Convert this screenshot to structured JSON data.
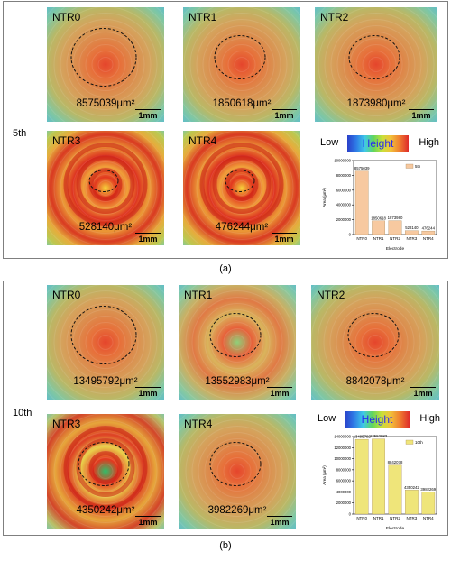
{
  "figure": {
    "panels": [
      {
        "id": "a",
        "caption": "(a)",
        "row_label": "5th",
        "scale_label": "1mm",
        "legend": {
          "low": "Low",
          "height": "Height",
          "high": "High"
        },
        "tiles": [
          {
            "label": "NTR0",
            "area": "8575039μm²",
            "style": "warm"
          },
          {
            "label": "NTR1",
            "area": "1850618μm²",
            "style": "warm"
          },
          {
            "label": "NTR2",
            "area": "1873980μm²",
            "style": "warm"
          },
          {
            "label": "NTR3",
            "area": "528140μm²",
            "style": "rings"
          },
          {
            "label": "NTR4",
            "area": "476244μm²",
            "style": "rings"
          }
        ]
      },
      {
        "id": "b",
        "caption": "(b)",
        "row_label": "10th",
        "scale_label": "1mm",
        "legend": {
          "low": "Low",
          "height": "Height",
          "high": "High"
        },
        "tiles": [
          {
            "label": "NTR0",
            "area": "13495792μm²",
            "style": "warm"
          },
          {
            "label": "NTR1",
            "area": "13552983μm²",
            "style": "greenish"
          },
          {
            "label": "NTR2",
            "area": "8842078μm²",
            "style": "warm"
          },
          {
            "label": "NTR3",
            "area": "4350242μm²",
            "style": "greenrings"
          },
          {
            "label": "NTR4",
            "area": "3982269μm²",
            "style": "warm"
          }
        ]
      }
    ]
  },
  "chart_data": [
    {
      "type": "bar",
      "categories": [
        "NTR0",
        "NTR1",
        "NTR2",
        "NTR3",
        "NTR4"
      ],
      "series": [
        {
          "name": "5th",
          "values": [
            8575039,
            1850618,
            1873980,
            528140,
            476244
          ],
          "color": "#f7c9a0"
        }
      ],
      "value_labels": [
        "8575039",
        "1850618",
        "1873980",
        "528140",
        "476244"
      ],
      "xlabel": "Electrode",
      "ylabel": "Area (μm²)",
      "ylim": [
        0,
        10000000
      ],
      "yticks": [
        "0",
        "2000000",
        "4000000",
        "6000000",
        "8000000",
        "10000000"
      ],
      "legend": "top-right",
      "grid": false
    },
    {
      "type": "bar",
      "categories": [
        "NTR0",
        "NTR1",
        "NTR2",
        "NTR3",
        "NTR4"
      ],
      "series": [
        {
          "name": "10th",
          "values": [
            13495792,
            13552983,
            8842078,
            4350242,
            3982269
          ],
          "color": "#efe57a"
        }
      ],
      "value_labels": [
        "13495792",
        "13552983",
        "8842078",
        "4350242",
        "3982269"
      ],
      "xlabel": "Electrode",
      "ylabel": "Area (μm²)",
      "ylim": [
        0,
        14000000
      ],
      "yticks": [
        "0",
        "2000000",
        "4000000",
        "6000000",
        "8000000",
        "10000000",
        "12000000",
        "14000000"
      ],
      "legend": "top-right",
      "grid": false
    }
  ]
}
